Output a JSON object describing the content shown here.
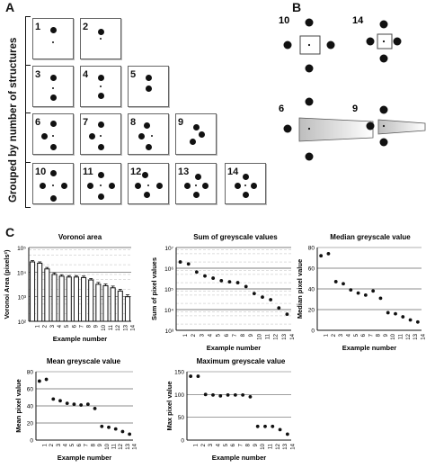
{
  "figure": {
    "panel_a": "A",
    "panel_b": "B",
    "panel_c": "C",
    "grouping_label": "Grouped by number of structures",
    "tiles": [
      "1",
      "2",
      "3",
      "4",
      "5",
      "6",
      "7",
      "8",
      "9",
      "10",
      "11",
      "12",
      "13",
      "14"
    ],
    "b_examples": [
      "10",
      "14",
      "6",
      "9"
    ]
  },
  "chart_data": [
    {
      "type": "bar",
      "title": "Voronoi area",
      "xlabel": "Example number",
      "ylabel": "Voronoi Area (pixels²)",
      "ylog": true,
      "ylim": [
        100,
        100000
      ],
      "ytick_labels": [
        "10²",
        "10³",
        "10⁴",
        "10⁵"
      ],
      "categories": [
        "1",
        "2",
        "3",
        "4",
        "5",
        "6",
        "7",
        "8",
        "9",
        "10",
        "11",
        "12",
        "13",
        "14"
      ],
      "values": [
        26000,
        23000,
        13500,
        8000,
        6800,
        6300,
        6300,
        6000,
        4800,
        3200,
        2800,
        2300,
        1700,
        1000
      ],
      "error": [
        3500,
        3000,
        2000,
        1200,
        1000,
        900,
        900,
        900,
        700,
        600,
        500,
        400,
        300,
        200
      ]
    },
    {
      "type": "scatter",
      "title": "Sum of greyscale values",
      "xlabel": "Example number",
      "ylabel": "Sum of pixel values",
      "ylog": true,
      "ylim": [
        1000,
        10000000
      ],
      "ytick_labels": [
        "10³",
        "10⁴",
        "10⁵",
        "10⁶",
        "10⁷"
      ],
      "x": [
        "1",
        "2",
        "3",
        "4",
        "5",
        "6",
        "7",
        "8",
        "9",
        "10",
        "11",
        "12",
        "13",
        "14"
      ],
      "values": [
        2000000,
        1600000,
        650000,
        420000,
        330000,
        250000,
        220000,
        200000,
        130000,
        60000,
        40000,
        30000,
        12000,
        6000
      ]
    },
    {
      "type": "scatter",
      "title": "Median greyscale value",
      "xlabel": "Example number",
      "ylabel": "Median pixel value",
      "ylim": [
        0,
        80
      ],
      "yticks": [
        0,
        20,
        40,
        60,
        80
      ],
      "x": [
        "1",
        "2",
        "3",
        "4",
        "5",
        "6",
        "7",
        "8",
        "9",
        "10",
        "11",
        "12",
        "13",
        "14"
      ],
      "values": [
        72,
        74,
        47,
        45,
        39,
        36,
        34,
        38,
        31,
        17,
        16,
        13,
        10,
        8
      ]
    },
    {
      "type": "scatter",
      "title": "Mean greyscale value",
      "xlabel": "Example number",
      "ylabel": "Mean pixel value",
      "ylim": [
        0,
        80
      ],
      "yticks": [
        0,
        20,
        40,
        60,
        80
      ],
      "x": [
        "1",
        "2",
        "3",
        "4",
        "5",
        "6",
        "7",
        "8",
        "9",
        "10",
        "11",
        "12",
        "13",
        "14"
      ],
      "values": [
        69,
        71,
        48,
        46,
        43,
        42,
        41,
        42,
        37,
        16,
        15,
        13,
        10,
        7
      ]
    },
    {
      "type": "scatter",
      "title": "Maximum greyscale value",
      "xlabel": "Example number",
      "ylabel": "Max pixel value",
      "ylim": [
        0,
        150
      ],
      "yticks": [
        0,
        50,
        100,
        150
      ],
      "x": [
        "1",
        "2",
        "3",
        "4",
        "5",
        "6",
        "7",
        "8",
        "9",
        "10",
        "11",
        "12",
        "13",
        "14"
      ],
      "values": [
        140,
        140,
        100,
        99,
        97,
        99,
        99,
        99,
        95,
        30,
        30,
        30,
        23,
        13
      ]
    }
  ]
}
